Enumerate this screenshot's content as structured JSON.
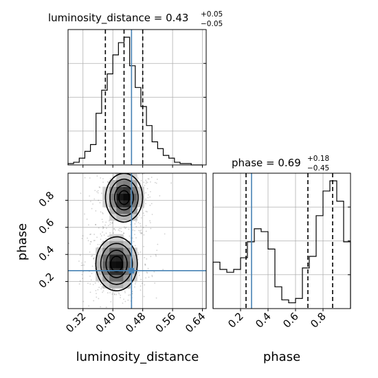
{
  "chart_data": {
    "type": "corner",
    "parameters": [
      "luminosity_distance",
      "phase"
    ],
    "truths": {
      "luminosity_distance": 0.45,
      "phase": 0.28
    },
    "colors": {
      "truth": "#4682b4",
      "hist": "#000000",
      "grid": "#b0b0b0"
    },
    "grid": true,
    "panels": [
      {
        "id": "luminosity_distance_marginal",
        "type": "histogram",
        "title_param": "luminosity_distance",
        "title_value": "0.43",
        "title_upper": "+0.05",
        "title_lower": "−0.05",
        "xlim": [
          0.28,
          0.65
        ],
        "bin_edges": [
          0.28,
          0.295,
          0.31,
          0.325,
          0.34,
          0.355,
          0.37,
          0.385,
          0.4,
          0.415,
          0.43,
          0.445,
          0.46,
          0.475,
          0.49,
          0.505,
          0.52,
          0.535,
          0.55,
          0.565,
          0.58,
          0.595,
          0.61,
          0.625,
          0.64
        ],
        "counts": [
          1,
          2,
          5,
          10,
          15,
          38,
          55,
          67,
          81,
          90,
          94,
          73,
          57,
          43,
          29,
          17,
          12,
          7,
          5,
          2,
          1,
          1,
          0,
          0
        ],
        "quantiles": [
          0.38,
          0.43,
          0.48
        ],
        "truth": 0.45,
        "xticks": [
          0.32,
          0.4,
          0.48,
          0.56,
          0.64
        ]
      },
      {
        "id": "phase_marginal",
        "type": "histogram",
        "title_param": "phase",
        "title_value": "0.69",
        "title_upper": "+0.18",
        "title_lower": "−0.45",
        "xlim": [
          0.0,
          1.0
        ],
        "bin_edges": [
          0.0,
          0.05,
          0.1,
          0.15,
          0.2,
          0.25,
          0.3,
          0.35,
          0.4,
          0.45,
          0.5,
          0.55,
          0.6,
          0.65,
          0.7,
          0.75,
          0.8,
          0.85,
          0.9,
          0.95,
          1.0
        ],
        "counts": [
          32,
          27,
          25,
          27,
          35,
          46,
          55,
          53,
          41,
          15,
          6,
          4,
          7,
          28,
          36,
          64,
          81,
          88,
          74,
          46
        ],
        "quantiles": [
          0.24,
          0.69,
          0.87
        ],
        "truth": 0.28,
        "xticks": [
          0.2,
          0.4,
          0.6,
          0.8
        ],
        "xlabel": "phase"
      },
      {
        "id": "joint",
        "type": "2d-density",
        "xlim": [
          0.28,
          0.65
        ],
        "ylim": [
          0.0,
          1.0
        ],
        "xlabel": "luminosity_distance",
        "ylabel": "phase",
        "xticks": [
          0.32,
          0.4,
          0.48,
          0.56,
          0.64
        ],
        "yticks": [
          0.2,
          0.4,
          0.6,
          0.8
        ],
        "modes": [
          {
            "x": 0.43,
            "y": 0.82,
            "sx": 0.025,
            "sy": 0.09
          },
          {
            "x": 0.41,
            "y": 0.33,
            "sx": 0.028,
            "sy": 0.1
          }
        ],
        "truth": [
          0.45,
          0.28
        ]
      }
    ],
    "tick_labels": {
      "ld_x": [
        "0.32",
        "0.40",
        "0.48",
        "0.56",
        "0.64"
      ],
      "phase_y": [
        "0.2",
        "0.4",
        "0.6",
        "0.8"
      ],
      "phase_x": [
        "0.2",
        "0.4",
        "0.6",
        "0.8"
      ]
    }
  }
}
